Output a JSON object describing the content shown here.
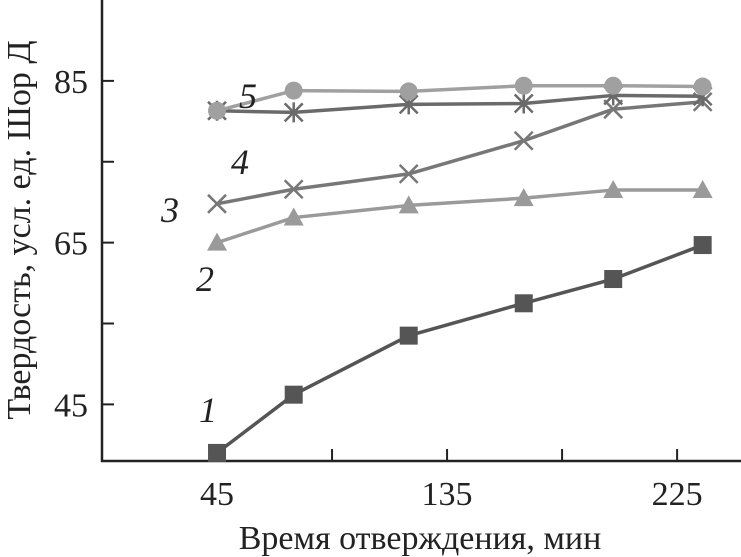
{
  "chart_data": {
    "type": "line",
    "xlabel": "Время отверждения, мин",
    "ylabel": "Твердость, усл. ед. Шор Д",
    "xlim": [
      0,
      250
    ],
    "ylim": [
      38,
      95
    ],
    "xticks": [
      45,
      135,
      225
    ],
    "xminor": [
      90,
      180
    ],
    "yticks": [
      45,
      65,
      85
    ],
    "yminor": [
      55,
      75
    ],
    "x": [
      45,
      75,
      120,
      165,
      200,
      235
    ],
    "series": [
      {
        "name": "1",
        "marker": "square",
        "color": "#555555",
        "values": [
          39,
          46.2,
          53.5,
          57.5,
          60.5,
          64.7
        ]
      },
      {
        "name": "2",
        "marker": "triangle",
        "color": "#9a9a9a",
        "values": [
          65,
          68.1,
          69.6,
          70.5,
          71.5,
          71.5
        ]
      },
      {
        "name": "3",
        "marker": "x",
        "color": "#777777",
        "values": [
          69.8,
          71.6,
          73.5,
          77.6,
          81.5,
          82.4
        ]
      },
      {
        "name": "4",
        "marker": "star",
        "color": "#6a6a6a",
        "values": [
          81.3,
          81.1,
          82.1,
          82.2,
          83.2,
          83.1
        ]
      },
      {
        "name": "5",
        "marker": "circle",
        "color": "#a0a0a0",
        "values": [
          81.3,
          83.8,
          83.7,
          84.4,
          84.4,
          84.3
        ]
      }
    ]
  }
}
